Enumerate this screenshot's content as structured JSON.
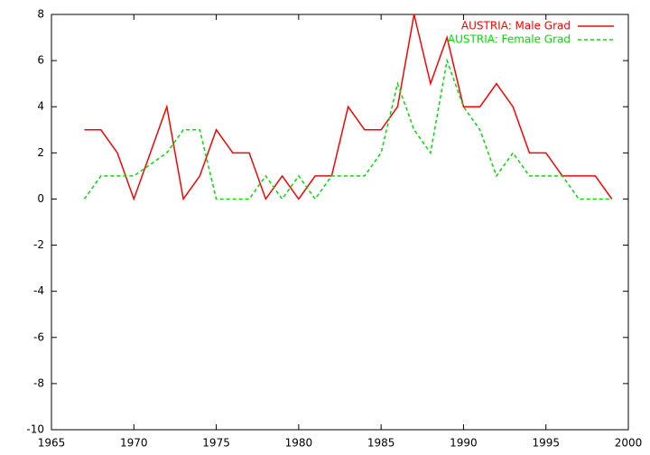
{
  "chart_data": {
    "type": "line",
    "x": [
      1967,
      1968,
      1969,
      1970,
      1971,
      1972,
      1973,
      1974,
      1975,
      1976,
      1977,
      1978,
      1979,
      1980,
      1981,
      1982,
      1983,
      1984,
      1985,
      1986,
      1987,
      1988,
      1989,
      1990,
      1991,
      1992,
      1993,
      1994,
      1995,
      1996,
      1997,
      1998,
      1999
    ],
    "series": [
      {
        "name": "AUSTRIA: Male Grad",
        "color": "#ff0000",
        "dash": false,
        "values": [
          3,
          3,
          2,
          0,
          2,
          4,
          0,
          1,
          3,
          2,
          2,
          0,
          1,
          0,
          1,
          1,
          4,
          3,
          3,
          4,
          8,
          5,
          7,
          4,
          4,
          5,
          4,
          2,
          2,
          1,
          1,
          1,
          0
        ]
      },
      {
        "name": "AUSTRIA: Female Grad",
        "color": "#00e000",
        "dash": true,
        "values": [
          0,
          1,
          1,
          1,
          1.5,
          2,
          3,
          3,
          0,
          0,
          0,
          1,
          0,
          1,
          0,
          1,
          1,
          1,
          2,
          5,
          3,
          2,
          6,
          4,
          3,
          1,
          2,
          1,
          1,
          1,
          0,
          0,
          0
        ]
      }
    ],
    "xlim": [
      1965,
      2000
    ],
    "xticks": [
      1965,
      1970,
      1975,
      1980,
      1985,
      1990,
      1995,
      2000
    ],
    "ylim": [
      -10,
      8
    ],
    "yticks": [
      -10,
      -8,
      -6,
      -4,
      -2,
      0,
      2,
      4,
      6,
      8
    ],
    "legend": "top-right"
  }
}
